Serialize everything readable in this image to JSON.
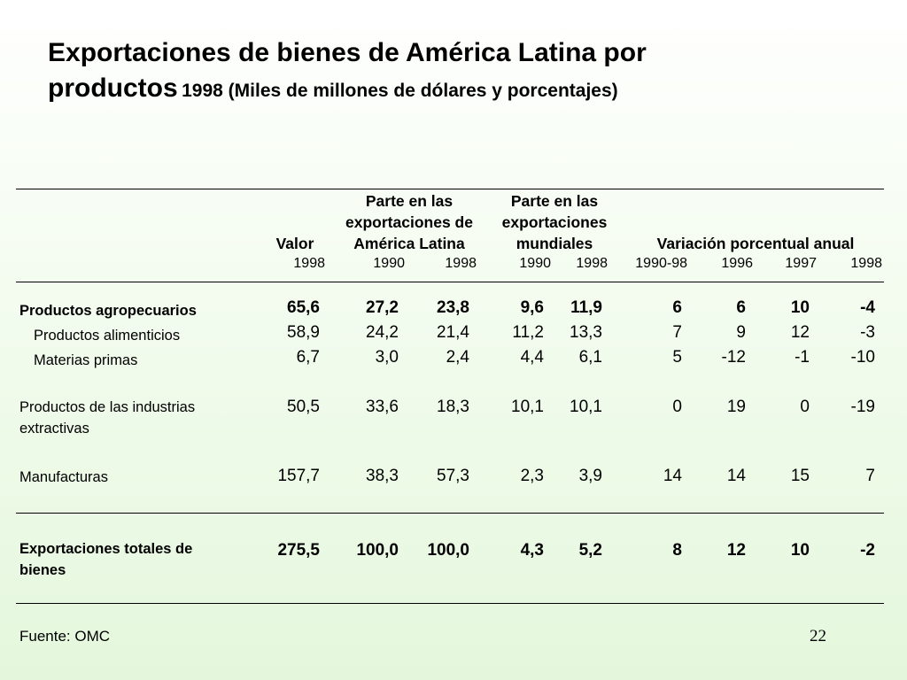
{
  "title": {
    "line1": "Exportaciones de bienes de América Latina por",
    "line2_main": "productos",
    "line2_sub": "1998 (Miles de millones de dólares y porcentajes)"
  },
  "headers": {
    "valor": "Valor",
    "parte_al": [
      "Parte en las",
      "exportaciones de",
      "América Latina"
    ],
    "parte_mund": [
      "Parte en las",
      "exportaciones",
      "mundiales"
    ],
    "variacion": "Variación porcentual anual",
    "years": [
      "1998",
      "1990",
      "1998",
      "1990",
      "1998",
      "1990-98",
      "1996",
      "1997",
      "1998"
    ]
  },
  "rows": [
    {
      "label": [
        "Productos agropecuarios"
      ],
      "bold": true,
      "indent": false,
      "values": [
        "65,6",
        "27,2",
        "23,8",
        "9,6",
        "11,9",
        "6",
        "6",
        "10",
        "-4"
      ]
    },
    {
      "label": [
        "Productos alimenticios"
      ],
      "bold": false,
      "indent": true,
      "values": [
        "58,9",
        "24,2",
        "21,4",
        "11,2",
        "13,3",
        "7",
        "9",
        "12",
        "-3"
      ]
    },
    {
      "label": [
        "Materias primas"
      ],
      "bold": false,
      "indent": true,
      "values": [
        "6,7",
        "3,0",
        "2,4",
        "4,4",
        "6,1",
        "5",
        "-12",
        "-1",
        "-10"
      ]
    },
    {
      "label": [
        "Productos de las industrias",
        "extractivas"
      ],
      "bold": false,
      "indent": false,
      "values": [
        "50,5",
        "33,6",
        "18,3",
        "10,1",
        "10,1",
        "0",
        "19",
        "0",
        "-19"
      ]
    },
    {
      "label": [
        "Manufacturas"
      ],
      "bold": false,
      "indent": false,
      "values": [
        "157,7",
        "38,3",
        "57,3",
        "2,3",
        "3,9",
        "14",
        "14",
        "15",
        "7"
      ]
    },
    {
      "label": [
        "Exportaciones totales de",
        "bienes"
      ],
      "bold": true,
      "indent": false,
      "values": [
        "275,5",
        "100,0",
        "100,0",
        "4,3",
        "5,2",
        "8",
        "12",
        "10",
        "-2"
      ]
    }
  ],
  "source": "Fuente: OMC",
  "page_number": "22"
}
